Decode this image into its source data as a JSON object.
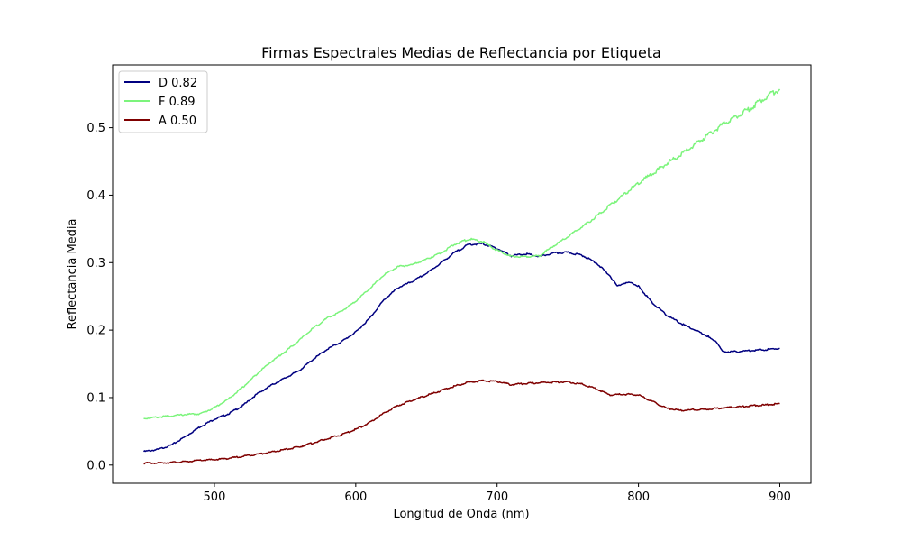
{
  "chart_data": {
    "type": "line",
    "title": "Firmas Espectrales Medias de Reflectancia por Etiqueta",
    "xlabel": "Longitud de Onda (nm)",
    "ylabel": "Reflectancia Media",
    "xlim": [
      428,
      922
    ],
    "ylim": [
      -0.027,
      0.593
    ],
    "xticks": [
      500,
      600,
      700,
      800,
      900
    ],
    "yticks": [
      0.0,
      0.1,
      0.2,
      0.3,
      0.4,
      0.5
    ],
    "ytick_labels": [
      "0.0",
      "0.1",
      "0.2",
      "0.3",
      "0.4",
      "0.5"
    ],
    "legend_position": "top-left",
    "grid": false,
    "series": [
      {
        "name": "D 0.82",
        "color": "#000080",
        "x": [
          450,
          460,
          470,
          480,
          490,
          500,
          510,
          520,
          530,
          540,
          550,
          560,
          570,
          580,
          590,
          600,
          610,
          620,
          630,
          640,
          650,
          660,
          670,
          680,
          690,
          700,
          710,
          720,
          730,
          740,
          750,
          760,
          770,
          780,
          785,
          790,
          795,
          800,
          810,
          820,
          830,
          840,
          850,
          855,
          860,
          870,
          880,
          890,
          900
        ],
        "values": [
          0.02,
          0.023,
          0.03,
          0.043,
          0.057,
          0.068,
          0.076,
          0.088,
          0.105,
          0.118,
          0.129,
          0.14,
          0.157,
          0.172,
          0.183,
          0.197,
          0.218,
          0.245,
          0.263,
          0.272,
          0.284,
          0.299,
          0.315,
          0.327,
          0.328,
          0.321,
          0.31,
          0.313,
          0.309,
          0.314,
          0.315,
          0.311,
          0.3,
          0.28,
          0.265,
          0.27,
          0.27,
          0.265,
          0.24,
          0.222,
          0.21,
          0.2,
          0.19,
          0.182,
          0.168,
          0.168,
          0.17,
          0.171,
          0.173
        ]
      },
      {
        "name": "F 0.89",
        "color": "#7cf47c",
        "x": [
          450,
          460,
          470,
          480,
          490,
          500,
          510,
          520,
          530,
          540,
          550,
          560,
          570,
          580,
          590,
          600,
          610,
          620,
          630,
          640,
          650,
          660,
          670,
          680,
          690,
          700,
          710,
          720,
          730,
          740,
          750,
          760,
          770,
          780,
          790,
          800,
          810,
          820,
          830,
          840,
          850,
          860,
          870,
          880,
          890,
          900
        ],
        "values": [
          0.069,
          0.071,
          0.073,
          0.075,
          0.076,
          0.085,
          0.098,
          0.115,
          0.135,
          0.153,
          0.168,
          0.185,
          0.203,
          0.218,
          0.228,
          0.243,
          0.262,
          0.282,
          0.294,
          0.297,
          0.305,
          0.314,
          0.327,
          0.335,
          0.331,
          0.318,
          0.309,
          0.309,
          0.31,
          0.325,
          0.338,
          0.353,
          0.368,
          0.385,
          0.401,
          0.418,
          0.432,
          0.447,
          0.46,
          0.475,
          0.49,
          0.505,
          0.517,
          0.53,
          0.545,
          0.557
        ]
      },
      {
        "name": "A 0.50",
        "color": "#7f0000",
        "x": [
          450,
          460,
          470,
          480,
          490,
          500,
          510,
          520,
          530,
          540,
          550,
          560,
          570,
          580,
          590,
          600,
          610,
          620,
          630,
          640,
          650,
          660,
          670,
          680,
          690,
          700,
          710,
          720,
          730,
          740,
          750,
          760,
          770,
          780,
          790,
          800,
          810,
          820,
          830,
          840,
          850,
          860,
          870,
          880,
          890,
          900
        ],
        "values": [
          0.003,
          0.003,
          0.004,
          0.005,
          0.007,
          0.008,
          0.01,
          0.013,
          0.016,
          0.019,
          0.023,
          0.027,
          0.033,
          0.039,
          0.045,
          0.053,
          0.063,
          0.077,
          0.088,
          0.096,
          0.103,
          0.11,
          0.117,
          0.123,
          0.125,
          0.124,
          0.119,
          0.121,
          0.122,
          0.123,
          0.123,
          0.12,
          0.113,
          0.104,
          0.105,
          0.104,
          0.094,
          0.084,
          0.081,
          0.082,
          0.083,
          0.085,
          0.086,
          0.088,
          0.089,
          0.091
        ]
      }
    ]
  }
}
